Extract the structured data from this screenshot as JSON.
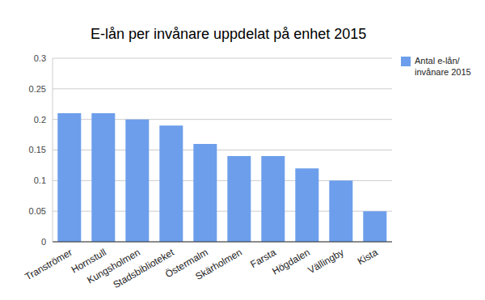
{
  "chart_data": {
    "type": "bar",
    "title": "E-lån per invånare uppdelat på enhet 2015",
    "categories": [
      "Tranströmer",
      "Hornstull",
      "Kungsholmen",
      "Stadsbiblioteket",
      "Östermalm",
      "Skärholmen",
      "Farsta",
      "Högdalen",
      "Vällingby",
      "Kista"
    ],
    "series": [
      {
        "name": "Antal e-lån/ invånare 2015",
        "color": "#6d9eeb",
        "values": [
          0.21,
          0.21,
          0.2,
          0.19,
          0.16,
          0.14,
          0.14,
          0.12,
          0.1,
          0.05
        ]
      }
    ],
    "ylim": [
      0,
      0.3
    ],
    "yticks": [
      0,
      0.05,
      0.1,
      0.15,
      0.2,
      0.25,
      0.3
    ],
    "grid": true,
    "legend": "right"
  }
}
